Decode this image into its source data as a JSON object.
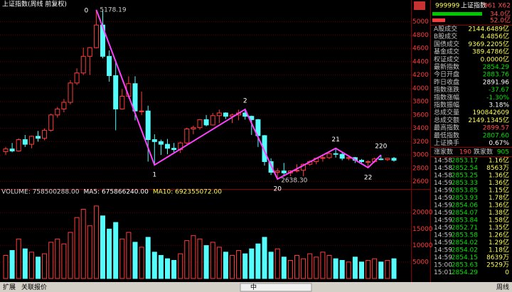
{
  "header": {
    "title": "上证指数(周线 前复权)"
  },
  "chart_data": [
    {
      "type": "candlestick",
      "up_color": "#ff3c3c",
      "down_color": "#54fcfc",
      "grid": true,
      "grid_color": "#5a0000",
      "ylim": [
        2500,
        5240
      ],
      "yticks": [
        2600,
        2800,
        3000,
        3200,
        3400,
        3600,
        3800,
        4000,
        4200,
        4400,
        4600,
        4800,
        5000
      ],
      "open": [
        3050,
        3090,
        3060,
        3230,
        3160,
        3280,
        3250,
        3370,
        3600,
        3690,
        3790,
        4080,
        4230,
        4480,
        4610,
        4950,
        4480,
        4190,
        3690,
        3880,
        4070,
        3660,
        3660,
        3230,
        3200,
        3160,
        3100,
        3080,
        3180,
        3390,
        3410,
        3530,
        3450,
        3590,
        3630,
        3580,
        3600,
        3630,
        3580,
        3530,
        3290,
        2900,
        2740,
        2760,
        2730,
        2760,
        2770,
        2860,
        2900,
        2950,
        2960,
        3020,
        3010,
        2950,
        2960,
        2920,
        2900,
        2900,
        2940,
        2930,
        2950
      ],
      "high": [
        3120,
        3180,
        3250,
        3300,
        3290,
        3360,
        3400,
        3620,
        3720,
        3840,
        4120,
        4300,
        4610,
        4620,
        5178.19,
        5170,
        4570,
        4420,
        3990,
        4180,
        4180,
        3950,
        3740,
        3310,
        3230,
        3240,
        3180,
        3200,
        3410,
        3440,
        3540,
        3600,
        3630,
        3680,
        3640,
        3620,
        3680,
        3684,
        3590,
        3540,
        3300,
        2950,
        2800,
        2880,
        2770,
        2860,
        2870,
        2920,
        2960,
        3010,
        3050,
        3100,
        3040,
        2990,
        2970,
        2940,
        2920,
        2960,
        3000,
        2960,
        2970
      ],
      "low": [
        3000,
        3040,
        3050,
        3120,
        3100,
        3200,
        3220,
        3350,
        3560,
        3640,
        3760,
        4050,
        4200,
        4200,
        4600,
        4450,
        4100,
        3370,
        3680,
        3850,
        3520,
        3600,
        2900,
        2850,
        3000,
        3010,
        3040,
        3030,
        3160,
        3310,
        3380,
        3430,
        3440,
        3480,
        3540,
        3480,
        3520,
        3530,
        3300,
        3120,
        2840,
        2700,
        2638.3,
        2680,
        2680,
        2740,
        2680,
        2840,
        2860,
        2900,
        2940,
        2960,
        2920,
        2920,
        2880,
        2880,
        2810,
        2880,
        2920,
        2910,
        2900
      ],
      "close": [
        3090,
        3060,
        3230,
        3160,
        3280,
        3250,
        3370,
        3600,
        3690,
        3790,
        4080,
        4230,
        4480,
        4610,
        4950,
        4480,
        4190,
        3690,
        3880,
        4070,
        3660,
        3660,
        3230,
        3200,
        3160,
        3100,
        3080,
        3180,
        3390,
        3410,
        3530,
        3450,
        3590,
        3630,
        3580,
        3600,
        3630,
        3580,
        3530,
        3290,
        2900,
        2740,
        2760,
        2730,
        2760,
        2770,
        2860,
        2900,
        2950,
        2960,
        3020,
        3010,
        2950,
        2960,
        2920,
        2900,
        2900,
        2940,
        2930,
        2950,
        2920
      ],
      "waves": {
        "color": "#ff40ff",
        "points": [
          {
            "label": "0",
            "candle": 14,
            "value": 5178.19
          },
          {
            "label": "1",
            "candle": 23,
            "value": 2850
          },
          {
            "label": "2",
            "candle": 37,
            "value": 3684
          },
          {
            "label": "20",
            "candle": 42,
            "value": 2638.3
          },
          {
            "label": "21",
            "candle": 51,
            "value": 3100
          },
          {
            "label": "22",
            "candle": 56,
            "value": 2810
          },
          {
            "label": "220",
            "candle": 58,
            "value": 3000
          }
        ]
      },
      "price_notes": [
        {
          "candle": 14,
          "value": 5178.19
        },
        {
          "candle": 42,
          "value": 2638.3,
          "label": "2638.30"
        }
      ]
    },
    {
      "type": "volume",
      "header_items": [
        {
          "text": "VOLUME: 758500288.00",
          "color": "#dddddd"
        },
        {
          "text": "MA5: 675866240.00",
          "color": "#ffffff"
        },
        {
          "text": "MA10: 692355072.00",
          "color": "#ffff54"
        }
      ],
      "ylim": [
        0,
        25000
      ],
      "yticks": [
        5000,
        10000,
        15000,
        20000
      ],
      "grid": true,
      "values": [
        7000,
        8500,
        12000,
        9000,
        8000,
        6500,
        7500,
        11000,
        12000,
        10500,
        14000,
        18500,
        21000,
        16000,
        22000,
        19000,
        15000,
        17000,
        12000,
        14000,
        11000,
        9500,
        12500,
        8000,
        7000,
        6000,
        5500,
        7500,
        11500,
        13000,
        12000,
        10000,
        11000,
        9500,
        8000,
        7000,
        8500,
        7500,
        9000,
        10500,
        12500,
        8000,
        9000,
        6500,
        5500,
        7000,
        6000,
        7500,
        6500,
        8000,
        7000,
        6000,
        5500,
        5000,
        6500,
        5000,
        5500,
        6000,
        5000,
        5500,
        6000
      ]
    }
  ],
  "quote": {
    "code": "999999",
    "name": "上证指数",
    "tag": "961 X62",
    "bars": [
      {
        "label": "34.0亿",
        "color": "#00c800",
        "label_color": "#ff5050"
      },
      {
        "label": "52.0亿",
        "color": "#ff3c3c",
        "label_color": "#ff5050"
      }
    ],
    "stats": [
      {
        "label": "A股成交",
        "value": "2144.6489亿",
        "color": "#ffff54"
      },
      {
        "label": "B股成交",
        "value": "4.4856亿",
        "color": "#ffff54"
      },
      {
        "label": "国债成交",
        "value": "9369.2205亿",
        "color": "#ffff54"
      },
      {
        "label": "基金成交",
        "value": "389.4786亿",
        "color": "#ffff54"
      },
      {
        "label": "权证成交",
        "value": "0.0000亿",
        "color": "#ffff54"
      },
      {
        "label": "最新指数",
        "value": "2854.29",
        "color": "#00e600"
      },
      {
        "label": "今日开盘",
        "value": "2883.76",
        "color": "#00e600"
      },
      {
        "label": "昨日收盘",
        "value": "2891.96",
        "color": "#ffffff"
      },
      {
        "label": "指数涨跌",
        "value": "-37.67",
        "color": "#00e600"
      },
      {
        "label": "指数涨幅",
        "value": "-1.30%",
        "color": "#00e600"
      },
      {
        "label": "指数振幅",
        "value": "3.18%",
        "color": "#ffffff"
      },
      {
        "label": "总成交量",
        "value": "190842609",
        "color": "#ffff54"
      },
      {
        "label": "总成交额",
        "value": "2149.1345亿",
        "color": "#ffff54"
      },
      {
        "label": "最高指数",
        "value": "2899.57",
        "color": "#ff5050"
      },
      {
        "label": "最低指数",
        "value": "2807.60",
        "color": "#00e600"
      },
      {
        "label": "上证换手",
        "value": "0.67%",
        "color": "#ffffff"
      }
    ],
    "counts": {
      "up_label": "涨家数",
      "up": "190",
      "down_label": "跌家数",
      "down": "905"
    },
    "price_color": "#00e600",
    "volume_color": "#ffff54",
    "ticks": [
      [
        "14:58",
        "2853.17",
        "1.16亿"
      ],
      [
        "14:58",
        "2852.54",
        "8563万"
      ],
      [
        "14:58",
        "2853.25",
        "1.36亿"
      ],
      [
        "14:59",
        "2853.33",
        "1.36亿"
      ],
      [
        "14:59",
        "2853.85",
        "1.15亿"
      ],
      [
        "14:59",
        "2853.93",
        "1.78亿"
      ],
      [
        "14:59",
        "2854.06",
        "1.36亿"
      ],
      [
        "14:59",
        "2854.07",
        "1.38亿"
      ],
      [
        "14:59",
        "2853.84",
        "1.58亿"
      ],
      [
        "14:59",
        "2852.71",
        "1.35亿"
      ],
      [
        "14:59",
        "2853.58",
        "1.26亿"
      ],
      [
        "14:59",
        "2854.02",
        "1.29亿"
      ],
      [
        "14:59",
        "2854.02",
        "1.18亿"
      ],
      [
        "14:59",
        "2854.15",
        "8639万"
      ],
      [
        "15:00",
        "2853.63",
        "2529万"
      ],
      [
        "15:01",
        "2854.29",
        "0"
      ]
    ]
  },
  "footer": {
    "left": [
      "扩展",
      "关联报价"
    ],
    "ime": "中",
    "right": "周线"
  }
}
